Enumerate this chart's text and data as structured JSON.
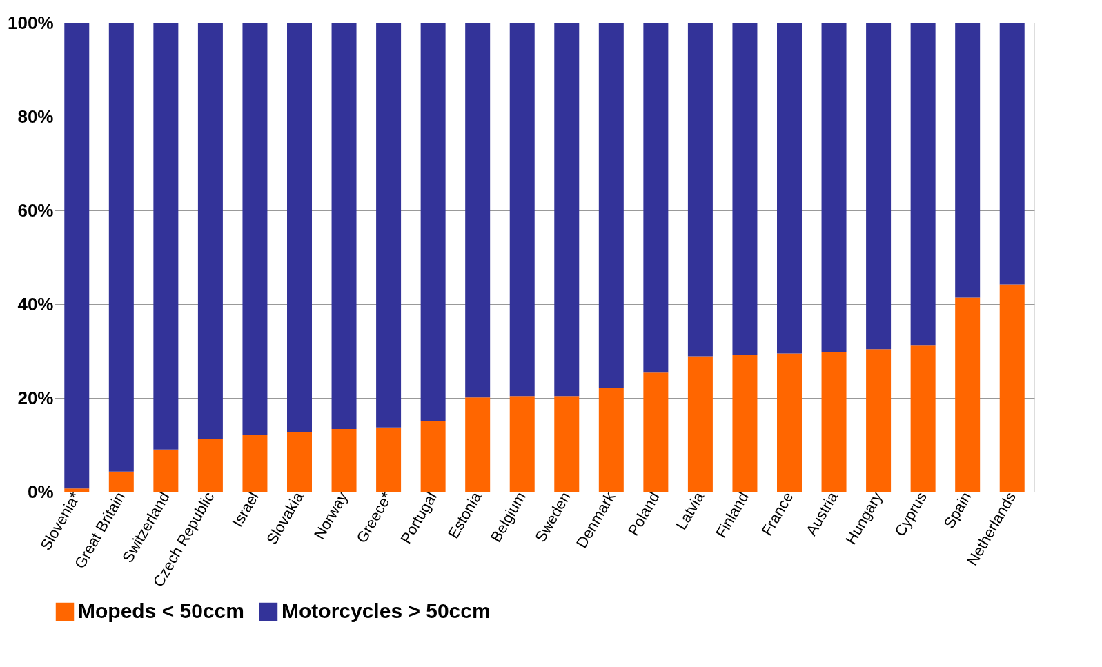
{
  "chart_data": {
    "type": "bar",
    "stacked": true,
    "categories": [
      "Slovenia*",
      "Great Britain",
      "Switzerland",
      "Czech Republic",
      "Israel",
      "Slovakia",
      "Norway",
      "Greece*",
      "Portugal",
      "Estonia",
      "Belgium",
      "Sweden",
      "Denmark",
      "Poland",
      "Latvia",
      "Finland",
      "France",
      "Austria",
      "Hungary",
      "Cyprus",
      "Spain",
      "Netherlands"
    ],
    "series": [
      {
        "name": "Mopeds < 50ccm",
        "color": "#ff6600",
        "values": [
          0.7,
          4.3,
          9.0,
          11.3,
          12.2,
          12.8,
          13.4,
          13.7,
          15.0,
          20.1,
          20.4,
          20.4,
          22.2,
          25.4,
          28.9,
          29.2,
          29.5,
          29.8,
          30.4,
          31.3,
          41.4,
          44.2
        ]
      },
      {
        "name": "Motorcycles > 50ccm",
        "color": "#333399",
        "values": [
          99.3,
          95.7,
          91.0,
          88.7,
          87.8,
          87.2,
          86.6,
          86.3,
          85.0,
          79.9,
          79.6,
          79.6,
          77.8,
          74.6,
          71.1,
          70.8,
          70.5,
          70.2,
          69.6,
          68.7,
          58.6,
          55.8
        ]
      }
    ],
    "ylim": [
      0,
      100
    ],
    "yticks": [
      {
        "value": 0,
        "label": "0%"
      },
      {
        "value": 20,
        "label": "20%"
      },
      {
        "value": 40,
        "label": "40%"
      },
      {
        "value": 60,
        "label": "60%"
      },
      {
        "value": 80,
        "label": "80%"
      },
      {
        "value": 100,
        "label": "100%"
      }
    ],
    "grid": "y",
    "legend": "bottom"
  }
}
